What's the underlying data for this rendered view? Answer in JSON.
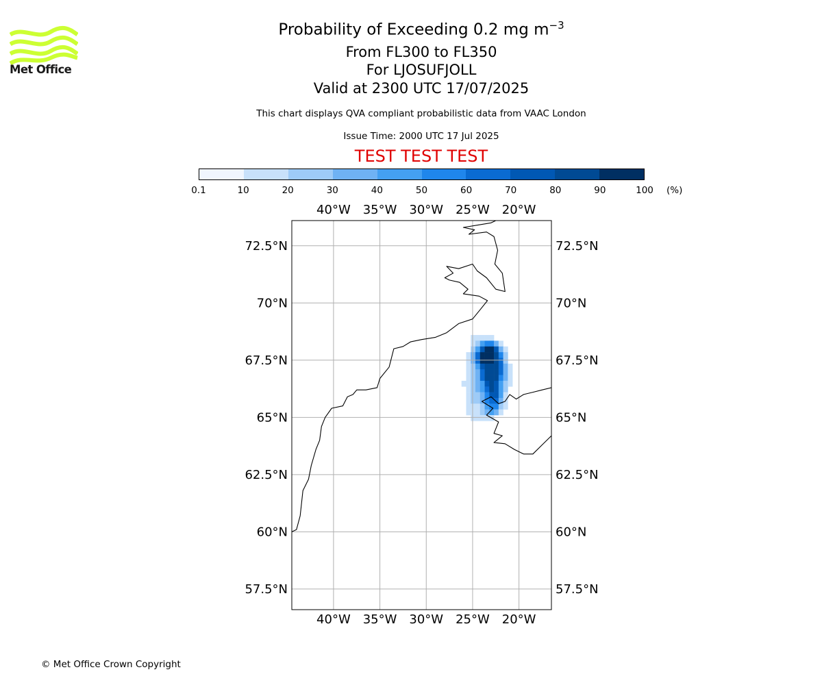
{
  "logo": {
    "name": "Met Office",
    "colors": {
      "waves": "#ccff33",
      "text": "#1a1a1a"
    }
  },
  "header": {
    "title_prefix": "Probability of Exceeding 0.2 mg m",
    "title_exponent": "−3",
    "range": "From FL300 to FL350",
    "location": "For LJOSUFJOLL",
    "valid": "Valid at 2300 UTC 17/07/2025",
    "description": "This chart displays QVA compliant probabilistic data from VAAC London",
    "issue_time": "Issue Time: 2000 UTC 17 Jul 2025",
    "test_banner": "TEST TEST TEST",
    "test_color": "#e00000"
  },
  "colorbar": {
    "unit": "(%)",
    "ticks": [
      "0.1",
      "10",
      "20",
      "30",
      "40",
      "50",
      "60",
      "70",
      "80",
      "90",
      "100"
    ],
    "colors": [
      "#f0f6fe",
      "#c8e1fa",
      "#9ecbf7",
      "#6fb2f4",
      "#44a0f2",
      "#1f86ec",
      "#0a6bd2",
      "#0058b4",
      "#004a94",
      "#002f62"
    ]
  },
  "map": {
    "projection": "rectangular lat/lon",
    "lon_range": [
      -44.5,
      -16.5
    ],
    "lat_range": [
      56.6,
      73.6
    ],
    "lon_ticks": [
      -40,
      -35,
      -30,
      -25,
      -20
    ],
    "lon_tick_labels": [
      "40°W",
      "35°W",
      "30°W",
      "25°W",
      "20°W"
    ],
    "lat_ticks": [
      72.5,
      70,
      67.5,
      65,
      62.5,
      60,
      57.5
    ],
    "lat_tick_labels": [
      "72.5°N",
      "70°N",
      "67.5°N",
      "65°N",
      "62.5°N",
      "60°N",
      "57.5°N"
    ],
    "grid": true,
    "gridline_color": "#b0b0b0",
    "coastline_color": "#000000",
    "greenland_coast": [
      [
        -44.5,
        60.0
      ],
      [
        -44.0,
        60.1
      ],
      [
        -43.6,
        60.7
      ],
      [
        -43.3,
        61.8
      ],
      [
        -42.7,
        62.3
      ],
      [
        -42.4,
        62.9
      ],
      [
        -41.9,
        63.6
      ],
      [
        -41.5,
        64.0
      ],
      [
        -41.3,
        64.6
      ],
      [
        -40.9,
        65.0
      ],
      [
        -40.2,
        65.4
      ],
      [
        -39.0,
        65.5
      ],
      [
        -38.5,
        65.9
      ],
      [
        -37.9,
        66.0
      ],
      [
        -37.5,
        66.2
      ],
      [
        -36.5,
        66.2
      ],
      [
        -35.3,
        66.3
      ],
      [
        -35.0,
        66.7
      ],
      [
        -34.0,
        67.2
      ],
      [
        -33.5,
        68.0
      ],
      [
        -32.5,
        68.1
      ],
      [
        -31.7,
        68.3
      ],
      [
        -30.5,
        68.4
      ],
      [
        -29.0,
        68.5
      ],
      [
        -27.8,
        68.7
      ],
      [
        -26.5,
        69.1
      ],
      [
        -25.0,
        69.3
      ],
      [
        -24.2,
        69.7
      ],
      [
        -23.4,
        70.1
      ],
      [
        -24.3,
        70.3
      ],
      [
        -26.0,
        70.4
      ],
      [
        -25.5,
        70.6
      ],
      [
        -26.4,
        70.9
      ],
      [
        -27.5,
        71.0
      ],
      [
        -28.0,
        71.1
      ],
      [
        -27.1,
        71.3
      ],
      [
        -27.8,
        71.6
      ],
      [
        -26.5,
        71.5
      ],
      [
        -25.0,
        71.7
      ],
      [
        -24.5,
        71.4
      ],
      [
        -23.5,
        71.1
      ],
      [
        -22.5,
        70.6
      ],
      [
        -21.5,
        70.5
      ],
      [
        -21.8,
        71.3
      ],
      [
        -22.6,
        71.7
      ],
      [
        -22.3,
        72.3
      ],
      [
        -22.7,
        72.9
      ],
      [
        -23.5,
        73.1
      ],
      [
        -25.4,
        73.0
      ],
      [
        -24.8,
        73.2
      ],
      [
        -26.0,
        73.3
      ],
      [
        -24.5,
        73.4
      ],
      [
        -23.0,
        73.5
      ],
      [
        -22.5,
        73.6
      ]
    ],
    "iceland_coast": [
      [
        -16.5,
        66.3
      ],
      [
        -17.5,
        66.2
      ],
      [
        -18.5,
        66.1
      ],
      [
        -19.5,
        66.0
      ],
      [
        -20.3,
        65.8
      ],
      [
        -21.0,
        66.0
      ],
      [
        -21.5,
        65.7
      ],
      [
        -22.2,
        65.6
      ],
      [
        -23.0,
        65.9
      ],
      [
        -24.0,
        65.7
      ],
      [
        -22.8,
        65.4
      ],
      [
        -23.5,
        65.1
      ],
      [
        -22.2,
        64.8
      ],
      [
        -22.7,
        64.3
      ],
      [
        -21.8,
        64.2
      ],
      [
        -22.7,
        63.9
      ],
      [
        -21.5,
        63.85
      ],
      [
        -20.5,
        63.6
      ],
      [
        -19.5,
        63.4
      ],
      [
        -18.5,
        63.4
      ],
      [
        -17.5,
        63.8
      ],
      [
        -16.5,
        64.2
      ]
    ],
    "probability_grid": {
      "lon_start": -26.2,
      "lat_start": 64.85,
      "dlon": 0.5,
      "dlat": 0.25,
      "rows": [
        [
          0,
          0,
          1,
          1,
          1,
          1,
          1,
          0,
          0,
          0,
          0
        ],
        [
          0,
          0,
          1,
          2,
          4,
          5,
          5,
          3,
          1,
          0,
          0
        ],
        [
          0,
          0,
          2,
          4,
          7,
          9,
          9,
          7,
          3,
          1,
          0
        ],
        [
          0,
          1,
          3,
          6,
          9,
          9,
          9,
          8,
          5,
          2,
          0
        ],
        [
          0,
          1,
          3,
          6,
          9,
          9,
          9,
          8,
          6,
          2,
          0
        ],
        [
          0,
          1,
          2,
          4,
          7,
          8,
          8,
          8,
          6,
          3,
          1
        ],
        [
          0,
          1,
          2,
          3,
          6,
          8,
          8,
          8,
          6,
          3,
          1
        ],
        [
          0,
          1,
          2,
          3,
          6,
          8,
          8,
          8,
          5,
          3,
          1
        ],
        [
          1,
          1,
          2,
          3,
          4,
          7,
          8,
          7,
          4,
          2,
          1
        ],
        [
          0,
          1,
          2,
          3,
          4,
          6,
          8,
          7,
          4,
          2,
          0
        ],
        [
          0,
          1,
          2,
          2,
          3,
          5,
          7,
          7,
          4,
          1,
          0
        ],
        [
          0,
          1,
          2,
          2,
          3,
          5,
          6,
          6,
          3,
          1,
          0
        ],
        [
          0,
          1,
          1,
          1,
          2,
          4,
          5,
          5,
          2,
          1,
          0
        ],
        [
          0,
          1,
          1,
          1,
          2,
          3,
          4,
          3,
          1,
          0,
          0
        ],
        [
          0,
          0,
          1,
          1,
          1,
          1,
          1,
          0,
          0,
          0,
          0
        ]
      ]
    }
  },
  "footer": {
    "copyright": "© Met Office Crown Copyright"
  }
}
